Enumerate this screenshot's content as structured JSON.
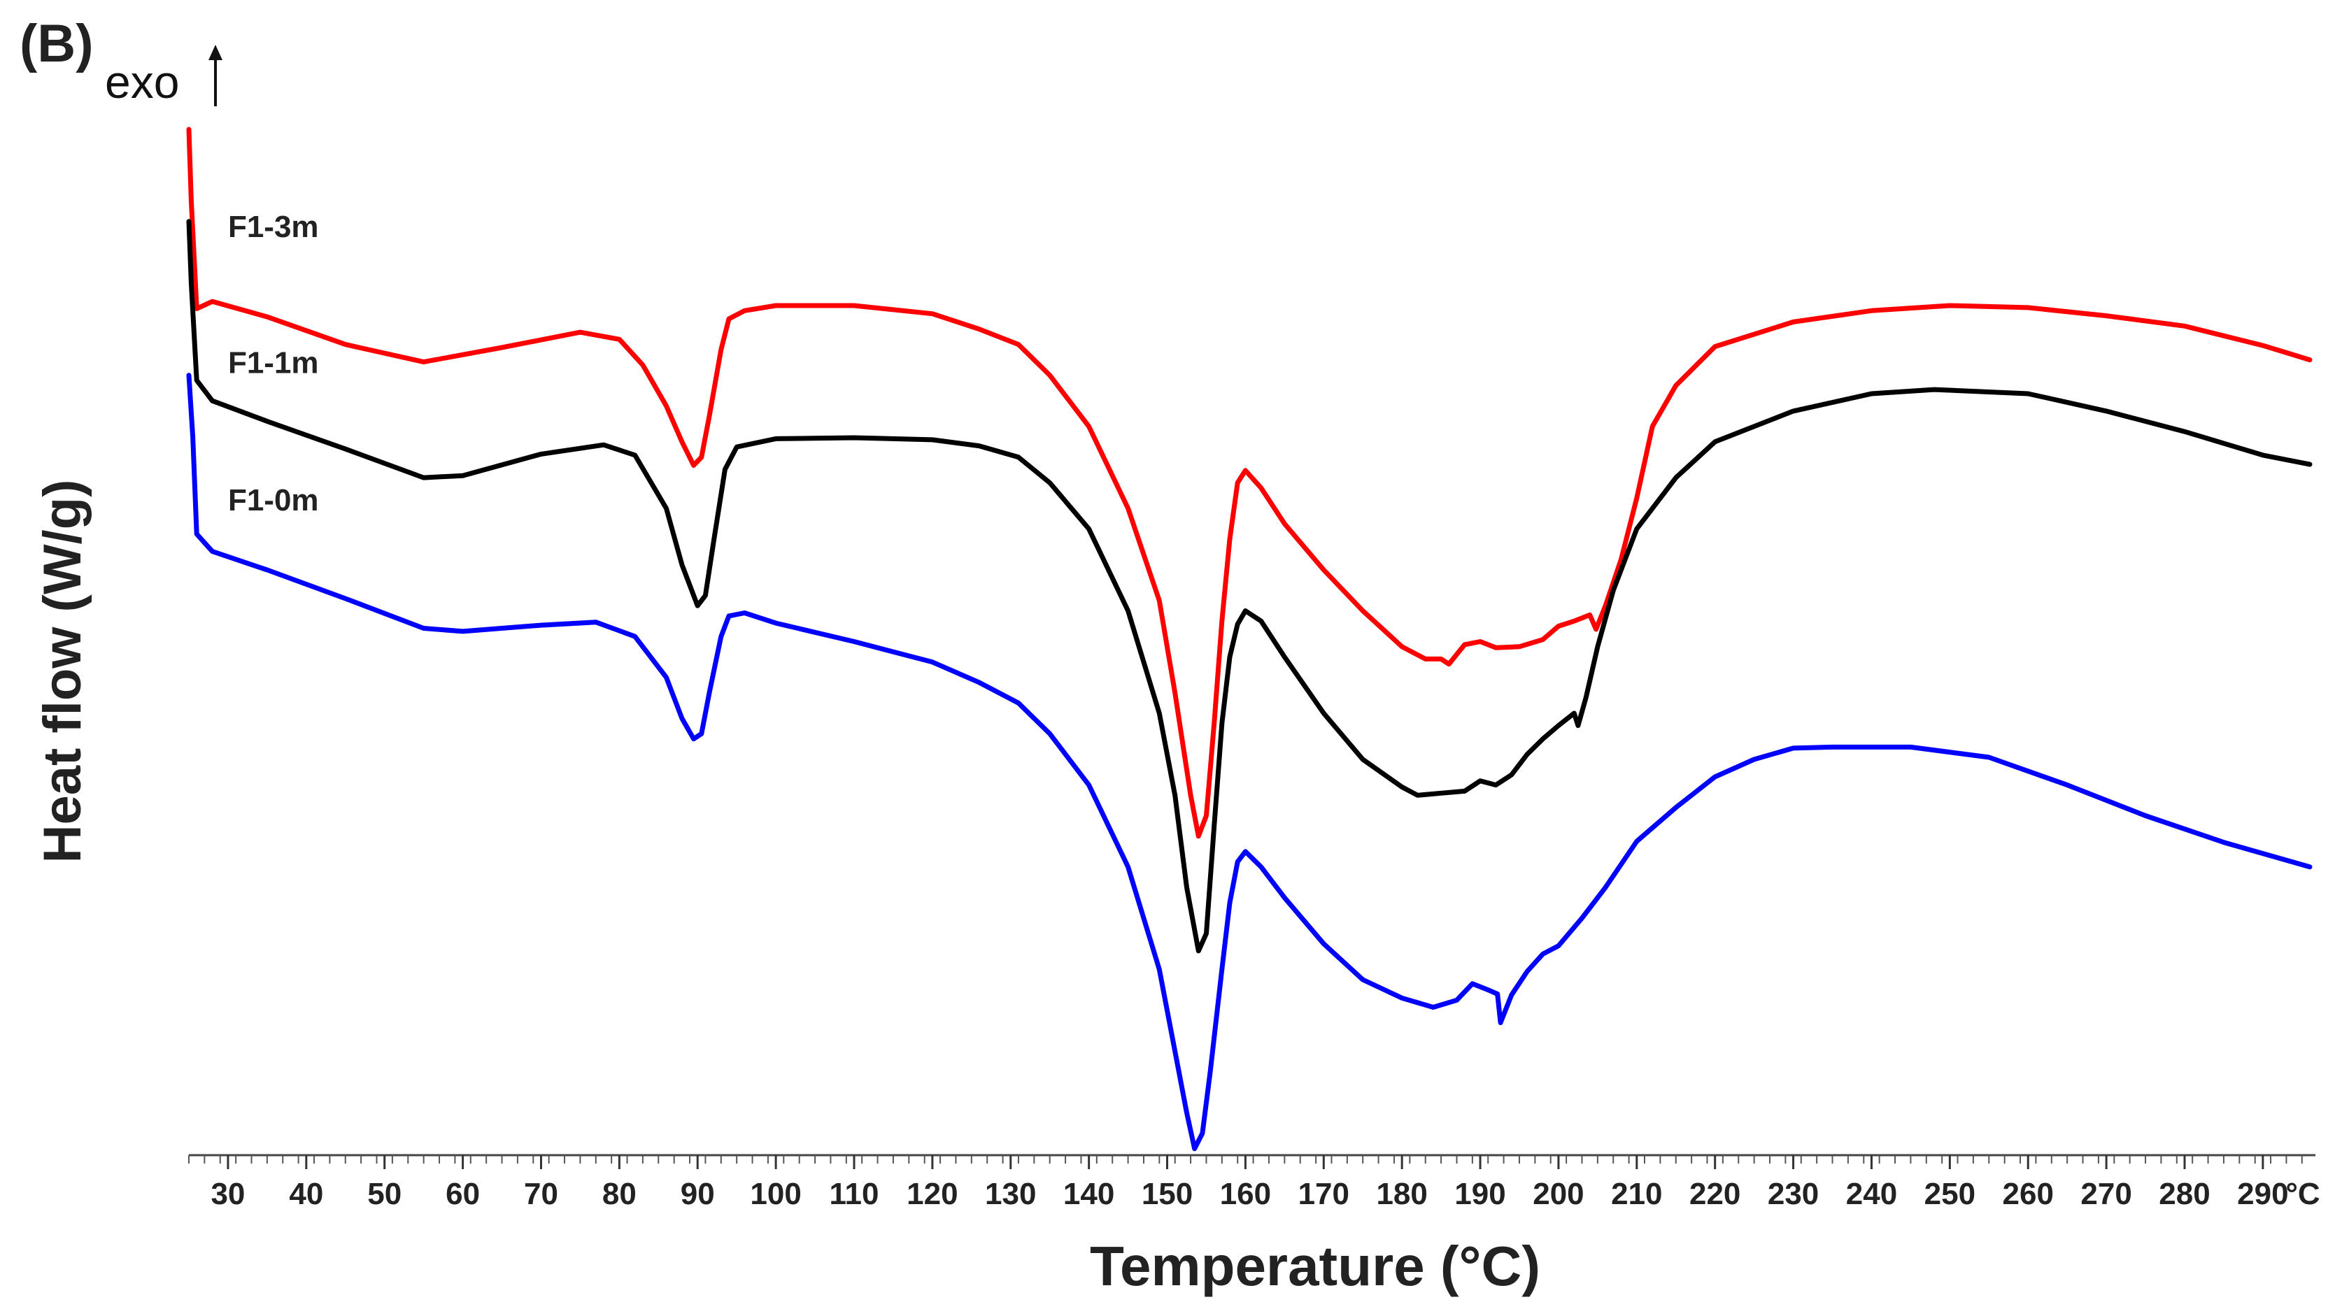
{
  "chart_data": {
    "type": "line",
    "panel_label": "(B)",
    "exo_label": "exo",
    "xlabel": "Temperature (°C)",
    "ylabel": "Heat flow (W/g)",
    "x_unit_tick": "°C",
    "xlim": [
      25,
      296
    ],
    "ylim": [
      0,
      100
    ],
    "x_ticks": [
      30,
      40,
      50,
      60,
      70,
      80,
      90,
      100,
      110,
      120,
      130,
      140,
      150,
      160,
      170,
      180,
      190,
      200,
      210,
      220,
      230,
      240,
      250,
      260,
      270,
      280,
      290
    ],
    "grid": false,
    "legend": "inline labels near curve starts",
    "y_values_note": "relative heat flow units (no numeric y-axis shown)",
    "series": [
      {
        "name": "F1-3m",
        "color": "#ff0000",
        "label_anchor": [
          30,
          89.5
        ],
        "points": [
          [
            25,
            100
          ],
          [
            25.3,
            93
          ],
          [
            26,
            82.5
          ],
          [
            28,
            83.2
          ],
          [
            35,
            81.7
          ],
          [
            45,
            79.0
          ],
          [
            55,
            77.3
          ],
          [
            65,
            78.7
          ],
          [
            75,
            80.2
          ],
          [
            80,
            79.5
          ],
          [
            83,
            77.0
          ],
          [
            86,
            73.0
          ],
          [
            88,
            69.5
          ],
          [
            89.5,
            67.2
          ],
          [
            90.5,
            68.0
          ],
          [
            91.5,
            72.0
          ],
          [
            93,
            78.5
          ],
          [
            94,
            81.5
          ],
          [
            96,
            82.3
          ],
          [
            100,
            82.8
          ],
          [
            110,
            82.8
          ],
          [
            120,
            82.0
          ],
          [
            126,
            80.5
          ],
          [
            131,
            79.0
          ],
          [
            135,
            76.0
          ],
          [
            140,
            71.0
          ],
          [
            145,
            63.0
          ],
          [
            149,
            54.0
          ],
          [
            151,
            45.0
          ],
          [
            153,
            35.0
          ],
          [
            154,
            31.0
          ],
          [
            155,
            33.0
          ],
          [
            156,
            42.0
          ],
          [
            157,
            52.0
          ],
          [
            158,
            60.0
          ],
          [
            159,
            65.5
          ],
          [
            160,
            66.7
          ],
          [
            162,
            65.0
          ],
          [
            165,
            61.5
          ],
          [
            170,
            57.0
          ],
          [
            175,
            53.0
          ],
          [
            180,
            49.5
          ],
          [
            183,
            48.3
          ],
          [
            185,
            48.3
          ],
          [
            186,
            47.8
          ],
          [
            188,
            49.7
          ],
          [
            190,
            50.0
          ],
          [
            192,
            49.4
          ],
          [
            195,
            49.5
          ],
          [
            198,
            50.2
          ],
          [
            200,
            51.5
          ],
          [
            202,
            52.0
          ],
          [
            204,
            52.6
          ],
          [
            204.8,
            51.2
          ],
          [
            206,
            53.5
          ],
          [
            208,
            58.0
          ],
          [
            210,
            64.0
          ],
          [
            212,
            71.0
          ],
          [
            215,
            75.0
          ],
          [
            220,
            78.8
          ],
          [
            230,
            81.2
          ],
          [
            240,
            82.3
          ],
          [
            250,
            82.8
          ],
          [
            260,
            82.6
          ],
          [
            270,
            81.8
          ],
          [
            280,
            80.8
          ],
          [
            290,
            78.9
          ],
          [
            296,
            77.5
          ]
        ]
      },
      {
        "name": "F1-1m",
        "color": "#000000",
        "label_anchor": [
          30,
          76.2
        ],
        "points": [
          [
            25,
            91
          ],
          [
            25.3,
            85
          ],
          [
            26,
            75.5
          ],
          [
            28,
            73.5
          ],
          [
            35,
            71.5
          ],
          [
            45,
            68.8
          ],
          [
            55,
            66.0
          ],
          [
            60,
            66.2
          ],
          [
            70,
            68.3
          ],
          [
            78,
            69.2
          ],
          [
            82,
            68.2
          ],
          [
            86,
            63.0
          ],
          [
            88,
            57.5
          ],
          [
            90,
            53.5
          ],
          [
            91,
            54.5
          ],
          [
            92,
            59.5
          ],
          [
            93.5,
            66.8
          ],
          [
            95,
            69.0
          ],
          [
            100,
            69.8
          ],
          [
            110,
            69.9
          ],
          [
            120,
            69.7
          ],
          [
            126,
            69.1
          ],
          [
            131,
            68.0
          ],
          [
            135,
            65.5
          ],
          [
            140,
            61.0
          ],
          [
            145,
            53.0
          ],
          [
            149,
            43.0
          ],
          [
            151,
            35.0
          ],
          [
            152.5,
            26.0
          ],
          [
            154,
            19.8
          ],
          [
            155,
            21.5
          ],
          [
            156,
            32.0
          ],
          [
            157,
            42.0
          ],
          [
            158,
            48.5
          ],
          [
            159,
            51.7
          ],
          [
            160,
            53.0
          ],
          [
            162,
            52.0
          ],
          [
            165,
            48.5
          ],
          [
            170,
            43.0
          ],
          [
            175,
            38.5
          ],
          [
            180,
            35.8
          ],
          [
            182,
            35.0
          ],
          [
            185,
            35.2
          ],
          [
            188,
            35.4
          ],
          [
            190,
            36.4
          ],
          [
            192,
            36.0
          ],
          [
            194,
            37.0
          ],
          [
            196,
            39.0
          ],
          [
            198,
            40.5
          ],
          [
            200,
            41.8
          ],
          [
            202,
            43.0
          ],
          [
            202.5,
            41.8
          ],
          [
            203.5,
            44.5
          ],
          [
            205,
            49.5
          ],
          [
            207,
            55.0
          ],
          [
            210,
            61.0
          ],
          [
            215,
            66.0
          ],
          [
            220,
            69.5
          ],
          [
            230,
            72.5
          ],
          [
            240,
            74.2
          ],
          [
            248,
            74.6
          ],
          [
            260,
            74.2
          ],
          [
            270,
            72.5
          ],
          [
            280,
            70.5
          ],
          [
            290,
            68.2
          ],
          [
            296,
            67.3
          ]
        ]
      },
      {
        "name": "F1-0m",
        "color": "#0000ff",
        "label_anchor": [
          30,
          62.8
        ],
        "points": [
          [
            25,
            76
          ],
          [
            25.5,
            70
          ],
          [
            26,
            60.5
          ],
          [
            28,
            58.8
          ],
          [
            35,
            57.0
          ],
          [
            45,
            54.2
          ],
          [
            55,
            51.3
          ],
          [
            60,
            51.0
          ],
          [
            70,
            51.6
          ],
          [
            77,
            51.9
          ],
          [
            82,
            50.5
          ],
          [
            86,
            46.5
          ],
          [
            88,
            42.5
          ],
          [
            89.5,
            40.5
          ],
          [
            90.5,
            41.0
          ],
          [
            91.5,
            45.0
          ],
          [
            93,
            50.5
          ],
          [
            94,
            52.5
          ],
          [
            96,
            52.8
          ],
          [
            100,
            51.8
          ],
          [
            110,
            50.0
          ],
          [
            120,
            48.0
          ],
          [
            126,
            46.0
          ],
          [
            131,
            44.0
          ],
          [
            135,
            41.0
          ],
          [
            140,
            36.0
          ],
          [
            145,
            28.0
          ],
          [
            149,
            18.0
          ],
          [
            151,
            10.0
          ],
          [
            152.5,
            4.0
          ],
          [
            153.5,
            0.5
          ],
          [
            154.5,
            2.0
          ],
          [
            155.5,
            8.0
          ],
          [
            157,
            18.0
          ],
          [
            158,
            24.5
          ],
          [
            159,
            28.5
          ],
          [
            160,
            29.5
          ],
          [
            162,
            28.0
          ],
          [
            165,
            25.0
          ],
          [
            170,
            20.5
          ],
          [
            175,
            17.0
          ],
          [
            180,
            15.2
          ],
          [
            184,
            14.3
          ],
          [
            187,
            15.0
          ],
          [
            189,
            16.6
          ],
          [
            191,
            16.0
          ],
          [
            192.2,
            15.6
          ],
          [
            192.6,
            12.8
          ],
          [
            194,
            15.5
          ],
          [
            196,
            17.8
          ],
          [
            198,
            19.5
          ],
          [
            200,
            20.3
          ],
          [
            203,
            23.0
          ],
          [
            206,
            26.0
          ],
          [
            210,
            30.5
          ],
          [
            215,
            33.8
          ],
          [
            220,
            36.8
          ],
          [
            225,
            38.5
          ],
          [
            230,
            39.6
          ],
          [
            235,
            39.7
          ],
          [
            245,
            39.7
          ],
          [
            255,
            38.7
          ],
          [
            265,
            36.0
          ],
          [
            275,
            33.0
          ],
          [
            285,
            30.4
          ],
          [
            296,
            28.0
          ]
        ]
      }
    ]
  }
}
